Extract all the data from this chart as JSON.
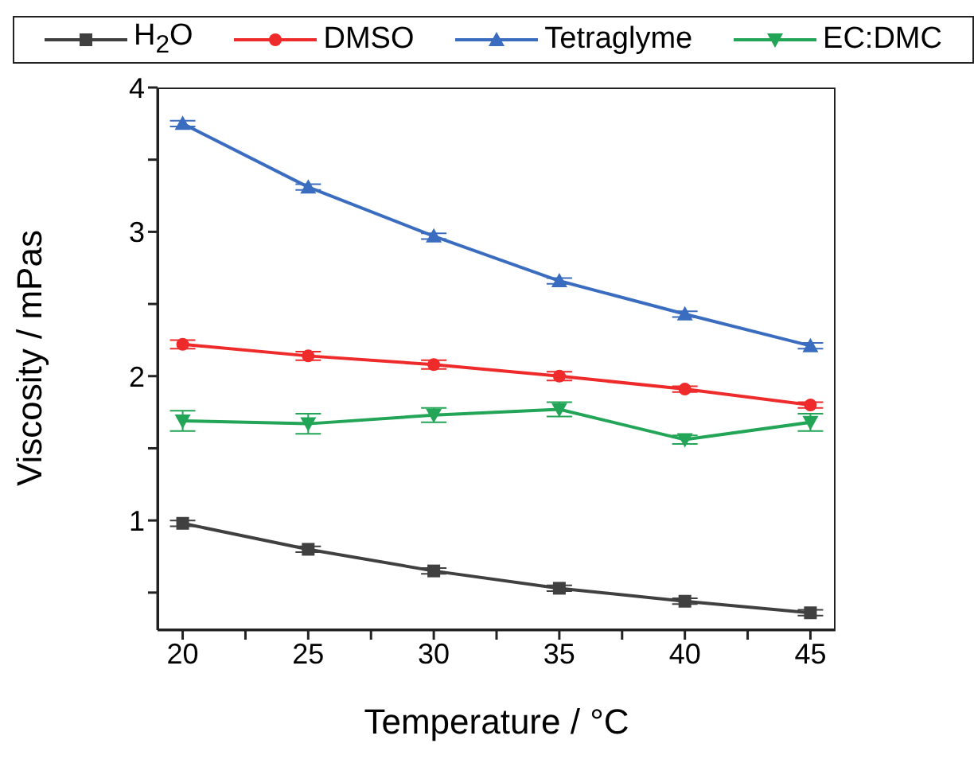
{
  "chart_data": {
    "type": "line",
    "xlabel": "Temperature / °C",
    "ylabel": "Viscosity / mPas",
    "x": [
      20,
      25,
      30,
      35,
      40,
      45
    ],
    "series": [
      {
        "name": "H$_{2}$O",
        "color": "#404040",
        "marker": "square",
        "values": [
          0.98,
          0.8,
          0.65,
          0.53,
          0.44,
          0.36
        ],
        "errors": [
          0.02,
          0.02,
          0.02,
          0.02,
          0.02,
          0.02
        ]
      },
      {
        "name": "DMSO",
        "color": "#ee2a2a",
        "marker": "circle",
        "values": [
          2.22,
          2.14,
          2.08,
          2.0,
          1.91,
          1.8
        ],
        "errors": [
          0.03,
          0.03,
          0.03,
          0.03,
          0.02,
          0.02
        ]
      },
      {
        "name": "Tetraglyme",
        "color": "#3a6dbf",
        "marker": "triangle",
        "values": [
          3.75,
          3.31,
          2.97,
          2.66,
          2.43,
          2.21
        ],
        "errors": [
          0.02,
          0.02,
          0.02,
          0.02,
          0.02,
          0.02
        ]
      },
      {
        "name": "EC:DMC",
        "color": "#22a556",
        "marker": "triangle-down",
        "values": [
          1.69,
          1.67,
          1.73,
          1.77,
          1.56,
          1.68
        ],
        "errors": [
          0.07,
          0.07,
          0.05,
          0.05,
          0.03,
          0.06
        ]
      }
    ],
    "xlim": [
      19,
      46
    ],
    "xticks": [
      20,
      {
        "value": 22.5,
        "label": null
      },
      25,
      {
        "value": 27.5,
        "label": null
      },
      30,
      {
        "value": 32.5,
        "label": null
      },
      35,
      {
        "value": 37.5,
        "label": null
      },
      40,
      {
        "value": 42.5,
        "label": null
      },
      45
    ],
    "ylim": [
      0.24,
      4
    ],
    "yticks": [
      {
        "value": 0.5,
        "label": null
      },
      1,
      {
        "value": 1.5,
        "label": null
      },
      2,
      {
        "value": 2.5,
        "label": null
      },
      3,
      {
        "value": 3.5,
        "label": null
      },
      4
    ],
    "grid": false,
    "legend": "top",
    "line_style": "solid"
  }
}
